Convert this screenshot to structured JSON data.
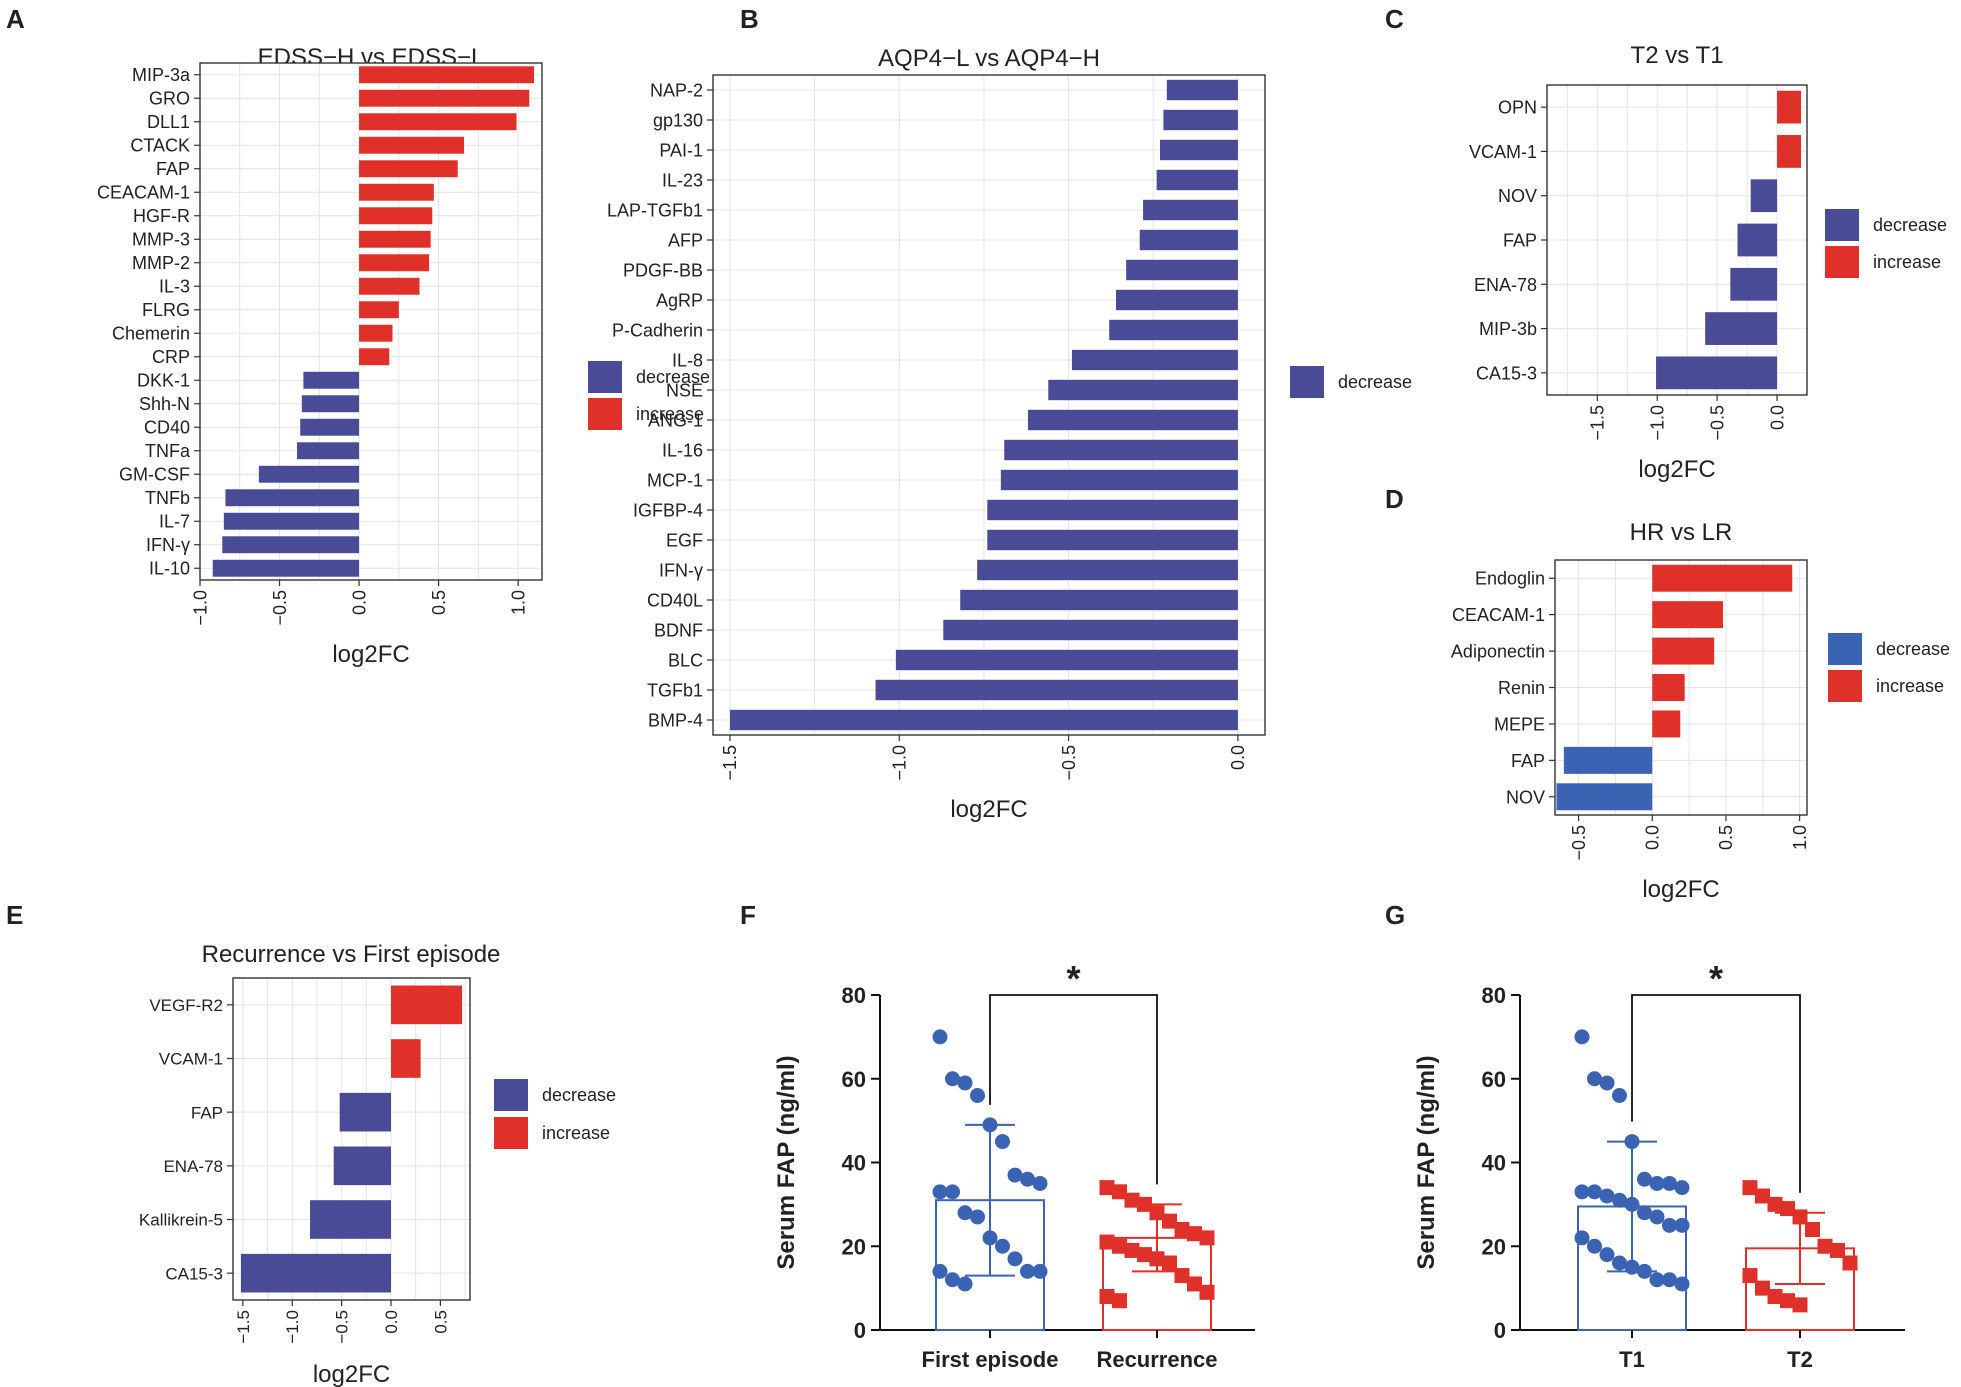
{
  "colors": {
    "decrease": "#4a4b97",
    "increase": "#e0302a",
    "decrease_d": "#3a63b3",
    "grid": "#e4e4e4"
  },
  "panels": [
    {
      "letter": "A",
      "title": "EDSS−H vs EDSS−L",
      "xlabel": "log2FC",
      "xlim": [
        -1.0,
        1.15
      ],
      "ticks": [
        -1.0,
        -0.5,
        0.0,
        0.5,
        1.0
      ],
      "tick_labels": [
        "−1.0",
        "−0.5",
        "0.0",
        "0.5",
        "1.0"
      ],
      "legend": [
        "decrease",
        "increase"
      ],
      "categories": [
        "MIP-3a",
        "GRO",
        "DLL1",
        "CTACK",
        "FAP",
        "CEACAM-1",
        "HGF-R",
        "MMP-3",
        "MMP-2",
        "IL-3",
        "FLRG",
        "Chemerin",
        "CRP",
        "DKK-1",
        "Shh-N",
        "CD40",
        "TNFa",
        "GM-CSF",
        "TNFb",
        "IL-7",
        "IFN-γ",
        "IL-10"
      ],
      "values": [
        1.1,
        1.07,
        0.99,
        0.66,
        0.62,
        0.47,
        0.46,
        0.45,
        0.44,
        0.38,
        0.25,
        0.21,
        0.19,
        -0.35,
        -0.36,
        -0.37,
        -0.39,
        -0.63,
        -0.84,
        -0.85,
        -0.86,
        -0.92
      ]
    },
    {
      "letter": "B",
      "title": "AQP4−L vs AQP4−H",
      "xlabel": "log2FC",
      "xlim": [
        -1.55,
        0.08
      ],
      "ticks": [
        -1.5,
        -1.0,
        -0.5,
        0.0
      ],
      "tick_labels": [
        "−1.5",
        "−1.0",
        "−0.5",
        "0.0"
      ],
      "legend": [
        "decrease"
      ],
      "categories": [
        "NAP-2",
        "gp130",
        "PAI-1",
        "IL-23",
        "LAP-TGFb1",
        "AFP",
        "PDGF-BB",
        "AgRP",
        "P-Cadherin",
        "IL-8",
        "NSE",
        "ANG-1",
        "IL-16",
        "MCP-1",
        "IGFBP-4",
        "EGF",
        "IFN-γ",
        "CD40L",
        "BDNF",
        "BLC",
        "TGFb1",
        "BMP-4"
      ],
      "values": [
        -0.21,
        -0.22,
        -0.23,
        -0.24,
        -0.28,
        -0.29,
        -0.33,
        -0.36,
        -0.38,
        -0.49,
        -0.56,
        -0.62,
        -0.69,
        -0.7,
        -0.74,
        -0.74,
        -0.77,
        -0.82,
        -0.87,
        -1.01,
        -1.07,
        -1.5
      ]
    },
    {
      "letter": "C",
      "title": "T2 vs T1",
      "xlabel": "log2FC",
      "xlim": [
        -1.92,
        0.25
      ],
      "ticks": [
        -1.5,
        -1.0,
        -0.5,
        0.0
      ],
      "tick_labels": [
        "−1.5",
        "−1.0",
        "−0.5",
        "0.0"
      ],
      "legend": [
        "decrease",
        "increase"
      ],
      "categories": [
        "OPN",
        "VCAM-1",
        "NOV",
        "FAP",
        "ENA-78",
        "MIP-3b",
        "CA15-3"
      ],
      "values": [
        0.2,
        0.2,
        -0.22,
        -0.33,
        -0.39,
        -0.6,
        -1.01
      ]
    },
    {
      "letter": "D",
      "title": "HR vs LR",
      "xlabel": "log2FC",
      "xlim": [
        -0.66,
        1.05
      ],
      "ticks": [
        -0.5,
        0.0,
        0.5,
        1.0
      ],
      "tick_labels": [
        "−0.5",
        "0.0",
        "0.5",
        "1.0"
      ],
      "legend": [
        "decrease",
        "increase"
      ],
      "categories": [
        "Endoglin",
        "CEACAM-1",
        "Adiponectin",
        "Renin",
        "MEPE",
        "FAP",
        "NOV"
      ],
      "values": [
        0.95,
        0.48,
        0.42,
        0.22,
        0.19,
        -0.6,
        -0.65
      ]
    },
    {
      "letter": "E",
      "title": "Recurrence vs First episode",
      "xlabel": "log2FC",
      "xlim": [
        -1.6,
        0.8
      ],
      "ticks": [
        -1.5,
        -1.0,
        -0.5,
        0.0,
        0.5
      ],
      "tick_labels": [
        "−1.5",
        "−1.0",
        "−0.5",
        "0.0",
        "0.5"
      ],
      "legend": [
        "decrease",
        "increase"
      ],
      "categories": [
        "VEGF-R2",
        "VCAM-1",
        "FAP",
        "ENA-78",
        "Kallikrein-5",
        "CA15-3"
      ],
      "values": [
        0.72,
        0.3,
        -0.52,
        -0.58,
        -0.82,
        -1.52
      ]
    },
    {
      "letter": "F",
      "ylabel": "Serum FAP (ng/ml)",
      "ylim": [
        0,
        80
      ],
      "yticks": [
        "0",
        "20",
        "40",
        "60",
        "80"
      ],
      "sig": "*",
      "groups": [
        {
          "name": "First episode",
          "mean": 31,
          "sd": 18,
          "points": [
            70,
            60,
            59,
            56,
            49,
            45,
            37,
            36,
            35,
            33,
            33,
            28,
            27,
            22,
            20,
            17,
            14,
            14,
            14,
            12,
            11
          ]
        },
        {
          "name": "Recurrence",
          "mean": 22,
          "sd": 8,
          "points": [
            34,
            33,
            31,
            30,
            28,
            26,
            24,
            23,
            22,
            21,
            20,
            19,
            18,
            17,
            16,
            13,
            11,
            9,
            8,
            7
          ]
        }
      ]
    },
    {
      "letter": "G",
      "ylabel": "Serum FAP (ng/ml)",
      "ylim": [
        0,
        80
      ],
      "yticks": [
        "0",
        "20",
        "40",
        "60",
        "80"
      ],
      "sig": "*",
      "groups": [
        {
          "name": "T1",
          "mean": 29.5,
          "sd": 15.5,
          "points": [
            70,
            60,
            59,
            56,
            45,
            36,
            35,
            35,
            34,
            33,
            33,
            32,
            31,
            30,
            28,
            27,
            25,
            25,
            22,
            20,
            18,
            16,
            15,
            14,
            12,
            12,
            11
          ]
        },
        {
          "name": "T2",
          "mean": 19.5,
          "sd": 8.5,
          "points": [
            34,
            32,
            30,
            29,
            27,
            24,
            20,
            19,
            16,
            13,
            10,
            8,
            7,
            6
          ]
        }
      ]
    }
  ]
}
